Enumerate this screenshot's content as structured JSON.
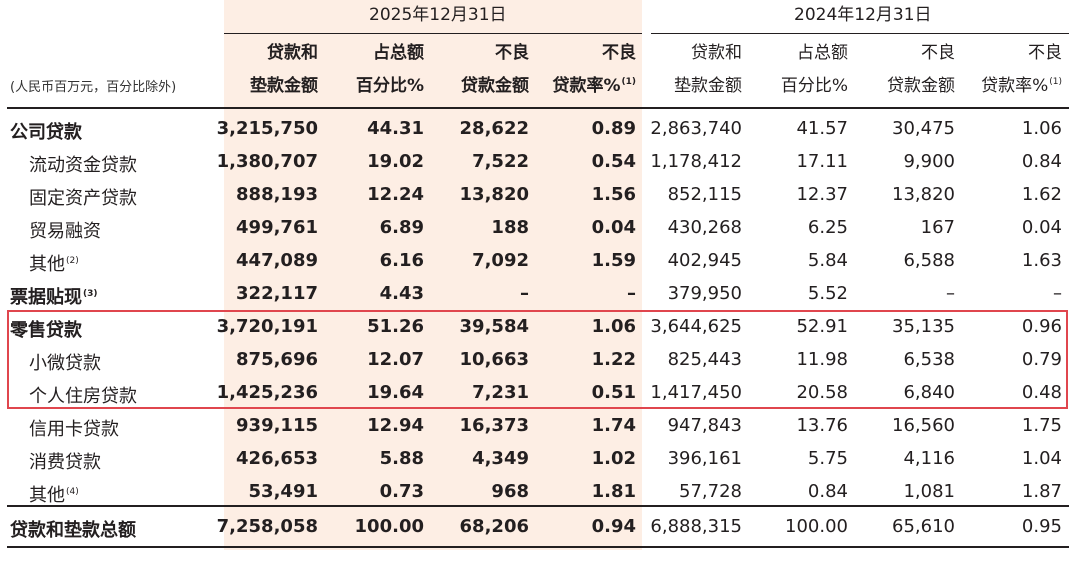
{
  "header": {
    "year_2025": "2025年12月31日",
    "year_2024": "2024年12月31日",
    "unit_note": "(人民币百万元，百分比除外)",
    "columns": [
      {
        "line1": "贷款和",
        "line2": "垫款金额",
        "sup": ""
      },
      {
        "line1": "占总额",
        "line2": "百分比%",
        "sup": ""
      },
      {
        "line1": "不良",
        "line2": "贷款金额",
        "sup": ""
      },
      {
        "line1": "不良",
        "line2": "贷款率%",
        "sup": "(1)"
      },
      {
        "line1": "贷款和",
        "line2": "垫款金额",
        "sup": ""
      },
      {
        "line1": "占总额",
        "line2": "百分比%",
        "sup": ""
      },
      {
        "line1": "不良",
        "line2": "贷款金额",
        "sup": ""
      },
      {
        "line1": "不良",
        "line2": "贷款率%",
        "sup": "(1)"
      }
    ]
  },
  "rows": [
    {
      "label": "公司贷款",
      "sup": "",
      "bold": true,
      "indent": false,
      "values": [
        "3,215,750",
        "44.31",
        "28,622",
        "0.89",
        "2,863,740",
        "41.57",
        "30,475",
        "1.06"
      ]
    },
    {
      "label": "流动资金贷款",
      "sup": "",
      "bold": false,
      "indent": true,
      "values": [
        "1,380,707",
        "19.02",
        "7,522",
        "0.54",
        "1,178,412",
        "17.11",
        "9,900",
        "0.84"
      ]
    },
    {
      "label": "固定资产贷款",
      "sup": "",
      "bold": false,
      "indent": true,
      "values": [
        "888,193",
        "12.24",
        "13,820",
        "1.56",
        "852,115",
        "12.37",
        "13,820",
        "1.62"
      ]
    },
    {
      "label": "贸易融资",
      "sup": "",
      "bold": false,
      "indent": true,
      "values": [
        "499,761",
        "6.89",
        "188",
        "0.04",
        "430,268",
        "6.25",
        "167",
        "0.04"
      ]
    },
    {
      "label": "其他",
      "sup": "(2)",
      "bold": false,
      "indent": true,
      "values": [
        "447,089",
        "6.16",
        "7,092",
        "1.59",
        "402,945",
        "5.84",
        "6,588",
        "1.63"
      ]
    },
    {
      "label": "票据贴现",
      "sup": "(3)",
      "bold": true,
      "indent": false,
      "values": [
        "322,117",
        "4.43",
        "–",
        "–",
        "379,950",
        "5.52",
        "–",
        "–"
      ]
    },
    {
      "label": "零售贷款",
      "sup": "",
      "bold": true,
      "indent": false,
      "values": [
        "3,720,191",
        "51.26",
        "39,584",
        "1.06",
        "3,644,625",
        "52.91",
        "35,135",
        "0.96"
      ]
    },
    {
      "label": "小微贷款",
      "sup": "",
      "bold": false,
      "indent": true,
      "values": [
        "875,696",
        "12.07",
        "10,663",
        "1.22",
        "825,443",
        "11.98",
        "6,538",
        "0.79"
      ]
    },
    {
      "label": "个人住房贷款",
      "sup": "",
      "bold": false,
      "indent": true,
      "values": [
        "1,425,236",
        "19.64",
        "7,231",
        "0.51",
        "1,417,450",
        "20.58",
        "6,840",
        "0.48"
      ]
    },
    {
      "label": "信用卡贷款",
      "sup": "",
      "bold": false,
      "indent": true,
      "values": [
        "939,115",
        "12.94",
        "16,373",
        "1.74",
        "947,843",
        "13.76",
        "16,560",
        "1.75"
      ]
    },
    {
      "label": "消费贷款",
      "sup": "",
      "bold": false,
      "indent": true,
      "values": [
        "426,653",
        "5.88",
        "4,349",
        "1.02",
        "396,161",
        "5.75",
        "4,116",
        "1.04"
      ]
    },
    {
      "label": "其他",
      "sup": "(4)",
      "bold": false,
      "indent": true,
      "values": [
        "53,491",
        "0.73",
        "968",
        "1.81",
        "57,728",
        "0.84",
        "1,081",
        "1.87"
      ]
    },
    {
      "label": "贷款和垫款总额",
      "sup": "",
      "bold": true,
      "indent": false,
      "values": [
        "7,258,058",
        "100.00",
        "68,206",
        "0.94",
        "6,888,315",
        "100.00",
        "65,610",
        "0.95"
      ]
    }
  ],
  "colors": {
    "shade": "#fdeee4",
    "rule": "#231f20",
    "highlight": "#e0464e"
  }
}
